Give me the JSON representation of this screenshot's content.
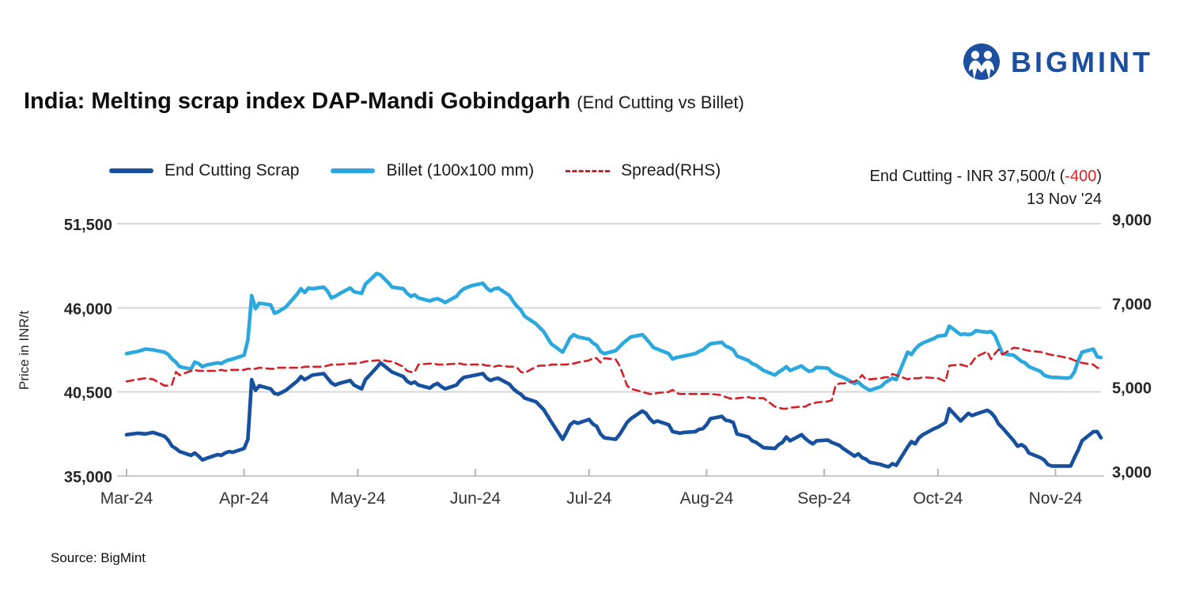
{
  "logo": {
    "text": "BIGMINT",
    "color": "#1C4FA0"
  },
  "title": {
    "main": "India: Melting scrap index DAP-Mandi Gobindgarh",
    "sub": "(End Cutting vs Billet)"
  },
  "legend": [
    {
      "label": "End Cutting Scrap",
      "color": "#17509E",
      "dashed": false
    },
    {
      "label": "Billet (100x100 mm)",
      "color": "#2BA9DE",
      "dashed": false
    },
    {
      "label": "Spread(RHS)",
      "color": "#D32027",
      "dashed": true
    }
  ],
  "annotation": {
    "prefix": "End Cutting - INR 37,500/t (",
    "change": "-400",
    "suffix": ")",
    "date": "13 Nov '24",
    "change_color": "#e8201f"
  },
  "source": "Source: BigMint",
  "chart_data": {
    "type": "line",
    "title": "India: Melting scrap index DAP-Mandi Gobindgarh (End Cutting vs Billet)",
    "ylabel_left": "Price in INR/t",
    "grid": true,
    "legend_position": "top",
    "y_left": {
      "ticks": [
        35000,
        40500,
        46000,
        51500
      ],
      "tick_labels": [
        "35,000",
        "40,500",
        "46,000",
        "51,500"
      ],
      "range": [
        35000,
        51500
      ]
    },
    "y_right": {
      "ticks": [
        3000,
        5000,
        7000,
        9000
      ],
      "tick_labels": [
        "3,000",
        "5,000",
        "7,000",
        "9,000"
      ],
      "range": [
        3000,
        9000
      ]
    },
    "x_ticks": [
      "Mar-24",
      "Apr-24",
      "May-24",
      "Jun-24",
      "Jul-24",
      "Aug-24",
      "Sep-24",
      "Oct-24",
      "Nov-24"
    ],
    "x_tick_day": [
      0,
      31,
      61,
      92,
      122,
      153,
      184,
      214,
      245
    ],
    "x_range_days": [
      0,
      257
    ],
    "dates": [
      "1-Mar",
      "4-Mar",
      "6-Mar",
      "8-Mar",
      "11-Mar",
      "12-Mar",
      "13-Mar",
      "14-Mar",
      "15-Mar",
      "18-Mar",
      "19-Mar",
      "20-Mar",
      "21-Mar",
      "22-Mar",
      "25-Mar",
      "26-Mar",
      "27-Mar",
      "28-Mar",
      "29-Mar",
      "1-Apr",
      "2-Apr",
      "3-Apr",
      "4-Apr",
      "5-Apr",
      "8-Apr",
      "9-Apr",
      "10-Apr",
      "12-Apr",
      "15-Apr",
      "16-Apr",
      "17-Apr",
      "18-Apr",
      "19-Apr",
      "22-Apr",
      "23-Apr",
      "24-Apr",
      "25-Apr",
      "26-Apr",
      "29-Apr",
      "30-Apr",
      "2-May",
      "3-May",
      "6-May",
      "7-May",
      "8-May",
      "9-May",
      "10-May",
      "13-May",
      "14-May",
      "15-May",
      "16-May",
      "17-May",
      "20-May",
      "21-May",
      "22-May",
      "23-May",
      "24-May",
      "27-May",
      "28-May",
      "29-May",
      "31-May",
      "3-Jun",
      "4-Jun",
      "5-Jun",
      "6-Jun",
      "7-Jun",
      "10-Jun",
      "11-Jun",
      "12-Jun",
      "13-Jun",
      "14-Jun",
      "17-Jun",
      "18-Jun",
      "19-Jun",
      "20-Jun",
      "21-Jun",
      "24-Jun",
      "25-Jun",
      "26-Jun",
      "27-Jun",
      "28-Jun",
      "1-Jul",
      "2-Jul",
      "3-Jul",
      "4-Jul",
      "5-Jul",
      "8-Jul",
      "9-Jul",
      "10-Jul",
      "11-Jul",
      "12-Jul",
      "15-Jul",
      "16-Jul",
      "17-Jul",
      "18-Jul",
      "19-Jul",
      "22-Jul",
      "23-Jul",
      "24-Jul",
      "25-Jul",
      "26-Jul",
      "29-Jul",
      "30-Jul",
      "31-Jul",
      "1-Aug",
      "2-Aug",
      "5-Aug",
      "6-Aug",
      "7-Aug",
      "8-Aug",
      "9-Aug",
      "12-Aug",
      "13-Aug",
      "14-Aug",
      "16-Aug",
      "19-Aug",
      "20-Aug",
      "21-Aug",
      "22-Aug",
      "23-Aug",
      "26-Aug",
      "27-Aug",
      "28-Aug",
      "29-Aug",
      "30-Aug",
      "2-Sep",
      "3-Sep",
      "4-Sep",
      "5-Sep",
      "6-Sep",
      "9-Sep",
      "10-Sep",
      "11-Sep",
      "12-Sep",
      "13-Sep",
      "16-Sep",
      "17-Sep",
      "18-Sep",
      "19-Sep",
      "20-Sep",
      "23-Sep",
      "24-Sep",
      "25-Sep",
      "26-Sep",
      "27-Sep",
      "30-Sep",
      "1-Oct",
      "3-Oct",
      "4-Oct",
      "7-Oct",
      "8-Oct",
      "9-Oct",
      "10-Oct",
      "11-Oct",
      "14-Oct",
      "15-Oct",
      "16-Oct",
      "17-Oct",
      "18-Oct",
      "21-Oct",
      "22-Oct",
      "23-Oct",
      "24-Oct",
      "25-Oct",
      "28-Oct",
      "29-Oct",
      "30-Oct",
      "31-Oct",
      "1-Nov",
      "4-Nov",
      "5-Nov",
      "6-Nov",
      "7-Nov",
      "8-Nov",
      "11-Nov",
      "12-Nov",
      "13-Nov"
    ],
    "day": [
      0,
      3,
      5,
      7,
      10,
      11,
      12,
      13,
      14,
      17,
      18,
      19,
      20,
      21,
      24,
      25,
      26,
      27,
      28,
      31,
      32,
      33,
      34,
      35,
      38,
      39,
      40,
      42,
      45,
      46,
      47,
      48,
      49,
      52,
      53,
      54,
      55,
      56,
      59,
      60,
      62,
      63,
      66,
      67,
      68,
      69,
      70,
      73,
      74,
      75,
      76,
      77,
      80,
      81,
      82,
      83,
      84,
      87,
      88,
      89,
      91,
      94,
      95,
      96,
      97,
      98,
      101,
      102,
      103,
      104,
      105,
      108,
      109,
      110,
      111,
      112,
      115,
      116,
      117,
      118,
      119,
      122,
      123,
      124,
      125,
      126,
      129,
      130,
      131,
      132,
      133,
      136,
      137,
      138,
      139,
      140,
      143,
      144,
      145,
      146,
      147,
      150,
      151,
      152,
      153,
      154,
      157,
      158,
      159,
      160,
      161,
      164,
      165,
      166,
      168,
      171,
      172,
      173,
      174,
      175,
      178,
      179,
      180,
      181,
      182,
      185,
      186,
      187,
      188,
      189,
      192,
      193,
      194,
      195,
      196,
      199,
      200,
      201,
      202,
      203,
      206,
      207,
      208,
      209,
      210,
      213,
      214,
      216,
      217,
      220,
      221,
      222,
      223,
      224,
      227,
      228,
      229,
      230,
      231,
      234,
      235,
      236,
      237,
      238,
      241,
      242,
      243,
      244,
      245,
      248,
      249,
      250,
      251,
      252,
      255,
      256,
      257
    ],
    "series": [
      {
        "name": "End Cutting Scrap",
        "axis": "left",
        "color": "#17509E",
        "style": "solid",
        "values": [
          37700,
          37800,
          37750,
          37850,
          37600,
          37350,
          36950,
          36800,
          36600,
          36350,
          36500,
          36300,
          36050,
          36150,
          36400,
          36350,
          36500,
          36600,
          36550,
          36800,
          37400,
          41300,
          40600,
          40900,
          40700,
          40400,
          40350,
          40600,
          41200,
          41500,
          41300,
          41450,
          41600,
          41700,
          41400,
          41100,
          40950,
          41050,
          41250,
          40950,
          40700,
          41300,
          42100,
          42400,
          42200,
          42000,
          41800,
          41500,
          41200,
          41050,
          41150,
          40950,
          40750,
          40950,
          41050,
          40850,
          40700,
          40950,
          41250,
          41450,
          41550,
          41700,
          41400,
          41250,
          41350,
          41400,
          41000,
          40700,
          40500,
          40350,
          40100,
          39850,
          39600,
          39350,
          38950,
          38550,
          37400,
          37850,
          38350,
          38550,
          38450,
          38700,
          38400,
          38250,
          37750,
          37500,
          37400,
          37700,
          38100,
          38500,
          38750,
          39250,
          39100,
          38750,
          38500,
          38600,
          38350,
          37900,
          37850,
          37800,
          37850,
          37900,
          38050,
          38100,
          38350,
          38750,
          38900,
          38650,
          38600,
          38500,
          37750,
          37550,
          37300,
          37200,
          36850,
          36800,
          37050,
          37200,
          37550,
          37300,
          37700,
          37450,
          37250,
          37100,
          37300,
          37350,
          37200,
          37100,
          37000,
          36800,
          36300,
          36450,
          36200,
          36100,
          35900,
          35750,
          35650,
          35600,
          35800,
          35700,
          36900,
          37250,
          37100,
          37500,
          37700,
          38100,
          38200,
          38500,
          39400,
          38600,
          38850,
          39100,
          38950,
          39050,
          39300,
          39150,
          38850,
          38400,
          38150,
          37300,
          36950,
          37050,
          36900,
          36500,
          36200,
          36050,
          35750,
          35650,
          35650,
          35650,
          35650,
          36200,
          36700,
          37300,
          37900,
          37900,
          37500
        ]
      },
      {
        "name": "Billet (100x100 mm)",
        "axis": "left",
        "color": "#2BA9DE",
        "style": "solid",
        "values": [
          43000,
          43150,
          43300,
          43250,
          43100,
          42950,
          42650,
          42450,
          42150,
          42000,
          42450,
          42350,
          42150,
          42250,
          42400,
          42350,
          42500,
          42600,
          42650,
          42900,
          43900,
          46800,
          45950,
          46300,
          46200,
          45650,
          45750,
          46050,
          46900,
          47250,
          47000,
          47300,
          47250,
          47350,
          47100,
          46650,
          46750,
          46900,
          47300,
          47050,
          46950,
          47550,
          48250,
          48150,
          47900,
          47650,
          47350,
          47250,
          46950,
          46750,
          46850,
          46650,
          46450,
          46550,
          46600,
          46500,
          46350,
          46750,
          47050,
          47250,
          47450,
          47600,
          47300,
          47100,
          47250,
          47300,
          46800,
          46400,
          46100,
          45850,
          45450,
          44950,
          44700,
          44450,
          44050,
          43650,
          43100,
          43550,
          44050,
          44250,
          44100,
          43950,
          43700,
          43550,
          43150,
          43000,
          43200,
          43450,
          43700,
          43900,
          44100,
          44250,
          44000,
          43700,
          43400,
          43300,
          43000,
          42650,
          42750,
          42800,
          42850,
          43000,
          43150,
          43250,
          43450,
          43650,
          43750,
          43500,
          43400,
          43250,
          42850,
          42550,
          42350,
          42250,
          41900,
          41600,
          41800,
          41950,
          42150,
          41900,
          42200,
          42000,
          41850,
          41900,
          42100,
          42050,
          41800,
          41650,
          41550,
          41450,
          41050,
          41150,
          40900,
          40750,
          40600,
          40850,
          41100,
          41250,
          41400,
          41300,
          43100,
          42950,
          43300,
          43550,
          43700,
          44000,
          44150,
          44200,
          44800,
          44250,
          44300,
          44250,
          44300,
          44500,
          44400,
          44450,
          44200,
          43600,
          43000,
          42900,
          42700,
          42500,
          42400,
          42150,
          41850,
          41600,
          41500,
          41450,
          41450,
          41400,
          41450,
          41800,
          42550,
          43100,
          43300,
          42800,
          42750
        ]
      },
      {
        "name": "Spread(RHS)",
        "axis": "right",
        "color": "#D32027",
        "style": "dashed",
        "values": [
          5250,
          5300,
          5325,
          5300,
          5150,
          5150,
          5175,
          5475,
          5400,
          5500,
          5525,
          5500,
          5500,
          5500,
          5500,
          5525,
          5500,
          5525,
          5525,
          5525,
          5550,
          5550,
          5550,
          5575,
          5550,
          5550,
          5575,
          5575,
          5575,
          5575,
          5600,
          5600,
          5600,
          5600,
          5625,
          5650,
          5650,
          5650,
          5675,
          5675,
          5700,
          5725,
          5750,
          5750,
          5750,
          5725,
          5725,
          5600,
          5500,
          5475,
          5475,
          5650,
          5675,
          5675,
          5650,
          5650,
          5650,
          5675,
          5675,
          5650,
          5650,
          5650,
          5625,
          5625,
          5600,
          5625,
          5600,
          5600,
          5575,
          5475,
          5450,
          5600,
          5625,
          5625,
          5625,
          5650,
          5650,
          5650,
          5675,
          5675,
          5700,
          5750,
          5800,
          5800,
          5700,
          5800,
          5775,
          5625,
          5400,
          5150,
          5075,
          5000,
          4975,
          4950,
          4950,
          4975,
          5000,
          5050,
          4975,
          4950,
          4950,
          4950,
          4950,
          4950,
          4950,
          4950,
          4925,
          4875,
          4850,
          4825,
          4850,
          4875,
          4850,
          4850,
          4850,
          4650,
          4625,
          4600,
          4600,
          4625,
          4650,
          4650,
          4700,
          4725,
          4750,
          4775,
          4800,
          5150,
          5200,
          5200,
          5250,
          5300,
          5400,
          5300,
          5300,
          5325,
          5350,
          5350,
          5425,
          5400,
          5300,
          5325,
          5325,
          5325,
          5350,
          5330,
          5325,
          5250,
          5625,
          5650,
          5625,
          5600,
          5700,
          5830,
          5960,
          5780,
          5910,
          6010,
          5890,
          6050,
          6040,
          6030,
          6000,
          5980,
          5950,
          5930,
          5900,
          5880,
          5870,
          5810,
          5790,
          5750,
          5720,
          5690,
          5650,
          5575,
          5550
        ]
      }
    ]
  }
}
